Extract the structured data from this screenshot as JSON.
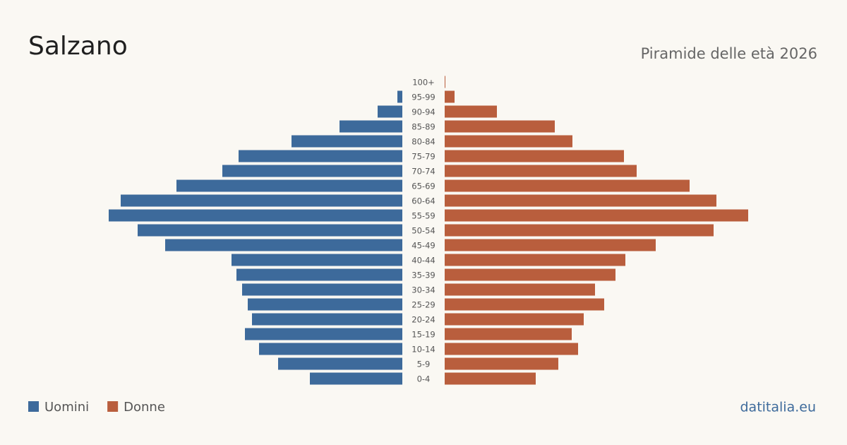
{
  "chart_data": {
    "type": "pyramid",
    "title": "Salzano",
    "subtitle": "Piramide delle età 2026",
    "source": "datitalia.eu",
    "categories": [
      "100+",
      "95-99",
      "90-94",
      "85-89",
      "80-84",
      "75-79",
      "70-74",
      "65-69",
      "60-64",
      "55-59",
      "50-54",
      "45-49",
      "40-44",
      "35-39",
      "30-34",
      "25-29",
      "20-24",
      "15-19",
      "10-14",
      "5-9",
      "0-4"
    ],
    "series": [
      {
        "name": "Uomini",
        "color": "#3d6a9b",
        "values": [
          0,
          7,
          35,
          89,
          157,
          232,
          255,
          320,
          399,
          416,
          375,
          336,
          242,
          235,
          227,
          219,
          213,
          223,
          203,
          176,
          131
        ]
      },
      {
        "name": "Donne",
        "color": "#b95e3d",
        "values": [
          1,
          14,
          74,
          156,
          181,
          254,
          272,
          347,
          385,
          430,
          381,
          299,
          256,
          242,
          213,
          226,
          197,
          180,
          189,
          161,
          129
        ]
      }
    ]
  }
}
